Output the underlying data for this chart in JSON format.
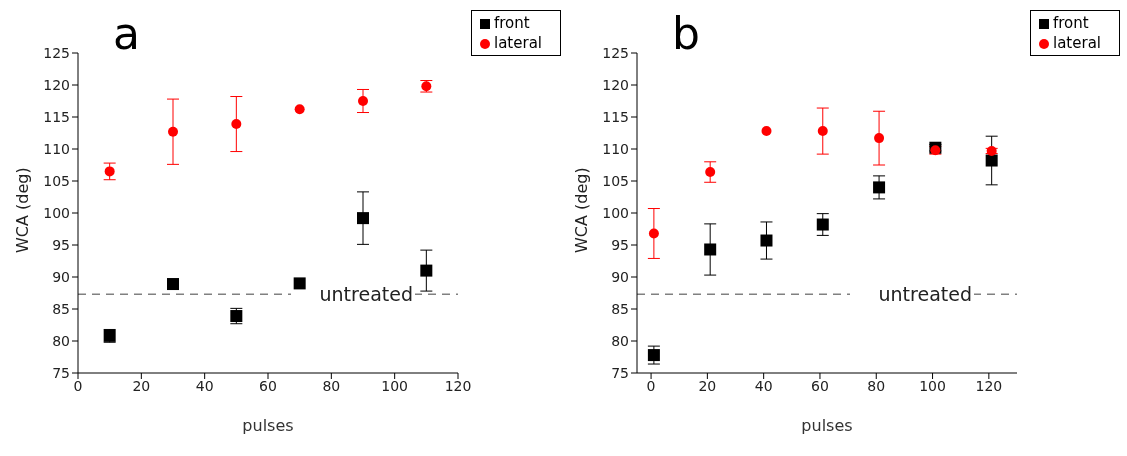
{
  "chart_data": [
    {
      "type": "scatter",
      "title": "a",
      "xlabel": "pulses",
      "ylabel": "WCA (deg)",
      "xlim": [
        0,
        120
      ],
      "xticks": [
        0,
        20,
        40,
        60,
        80,
        100,
        120
      ],
      "ylim": [
        75,
        125
      ],
      "yticks": [
        75,
        80,
        85,
        90,
        95,
        100,
        105,
        110,
        115,
        120,
        125
      ],
      "legend": "top right",
      "grid": false,
      "ref_lines": [
        {
          "axis": "y",
          "value": 87.3,
          "label": "untreated",
          "color": "#808080",
          "line_style": "dashed"
        }
      ],
      "series": [
        {
          "name": "front",
          "color": "#000000",
          "marker": "square",
          "x": [
            10,
            30,
            50,
            70,
            90,
            110
          ],
          "values": [
            80.8,
            88.9,
            83.9,
            89.0,
            99.2,
            91.0
          ],
          "errors": [
            1.0,
            null,
            1.2,
            null,
            4.1,
            3.2
          ]
        },
        {
          "name": "lateral",
          "color": "#ff0000",
          "marker": "circle",
          "x": [
            10,
            30,
            50,
            70,
            90,
            110
          ],
          "values": [
            106.5,
            112.7,
            113.9,
            116.2,
            117.5,
            119.8
          ],
          "errors": [
            1.3,
            5.1,
            4.3,
            null,
            1.8,
            0.9
          ]
        }
      ]
    },
    {
      "type": "scatter",
      "title": "b",
      "xlabel": "pulses",
      "ylabel": "WCA (deg)",
      "xlim": [
        -5,
        130
      ],
      "xticks": [
        0,
        20,
        40,
        60,
        80,
        100,
        120
      ],
      "ylim": [
        75,
        125
      ],
      "yticks": [
        75,
        80,
        85,
        90,
        95,
        100,
        105,
        110,
        115,
        120,
        125
      ],
      "legend": "top right",
      "grid": false,
      "ref_lines": [
        {
          "axis": "y",
          "value": 87.3,
          "label": "untreated",
          "color": "#808080",
          "line_style": "dashed"
        }
      ],
      "series": [
        {
          "name": "front",
          "color": "#000000",
          "marker": "square",
          "x": [
            1,
            21,
            41,
            61,
            81,
            101,
            121
          ],
          "values": [
            77.8,
            94.3,
            95.7,
            98.2,
            104.0,
            110.2,
            108.2
          ],
          "errors": [
            1.4,
            4.0,
            2.9,
            1.7,
            1.8,
            0.5,
            3.8
          ]
        },
        {
          "name": "lateral",
          "color": "#ff0000",
          "marker": "circle",
          "x": [
            1,
            21,
            41,
            61,
            81,
            101,
            121
          ],
          "values": [
            96.8,
            106.4,
            112.8,
            112.8,
            111.7,
            109.8,
            109.7
          ],
          "errors": [
            3.9,
            1.6,
            null,
            3.6,
            4.2,
            0.6,
            0.4
          ]
        }
      ]
    }
  ]
}
